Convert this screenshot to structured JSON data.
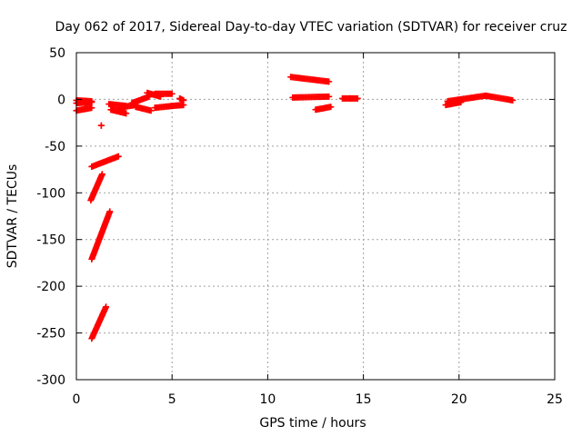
{
  "chart_data": {
    "type": "scatter",
    "title": "Day 062 of 2017, Sidereal Day-to-day VTEC variation (SDTVAR) for receiver cruz",
    "xlabel": "GPS time / hours",
    "ylabel": "SDTVAR / TECUs",
    "xlim": [
      0,
      25
    ],
    "ylim": [
      -300,
      50
    ],
    "xticks": [
      0,
      5,
      10,
      15,
      20,
      25
    ],
    "yticks": [
      50,
      0,
      -50,
      -100,
      -150,
      -200,
      -250,
      -300
    ],
    "grid": true,
    "marker": "plus",
    "color": "#ff0000",
    "segments": [
      {
        "x": [
          0.0,
          0.8
        ],
        "y": [
          -1,
          -2
        ]
      },
      {
        "x": [
          0.0,
          0.8
        ],
        "y": [
          -4,
          -3
        ]
      },
      {
        "x": [
          0.0,
          0.8
        ],
        "y": [
          -12,
          -9
        ]
      },
      {
        "x": [
          1.3,
          1.3
        ],
        "y": [
          -28,
          -28
        ]
      },
      {
        "x": [
          0.8,
          2.2
        ],
        "y": [
          -72,
          -61
        ]
      },
      {
        "x": [
          0.75,
          1.35
        ],
        "y": [
          -108,
          -80
        ]
      },
      {
        "x": [
          0.8,
          1.75
        ],
        "y": [
          -171,
          -120
        ]
      },
      {
        "x": [
          0.8,
          1.55
        ],
        "y": [
          -256,
          -222
        ]
      },
      {
        "x": [
          1.7,
          2.6
        ],
        "y": [
          -5,
          -7
        ]
      },
      {
        "x": [
          1.8,
          2.6
        ],
        "y": [
          -11,
          -15
        ]
      },
      {
        "x": [
          2.2,
          3.1
        ],
        "y": [
          -9,
          -6
        ]
      },
      {
        "x": [
          2.9,
          3.8
        ],
        "y": [
          -4,
          3
        ]
      },
      {
        "x": [
          3.1,
          3.9
        ],
        "y": [
          -8,
          -12
        ]
      },
      {
        "x": [
          3.7,
          4.4
        ],
        "y": [
          7,
          3
        ]
      },
      {
        "x": [
          4.1,
          5.0
        ],
        "y": [
          6,
          6
        ]
      },
      {
        "x": [
          4.1,
          5.0
        ],
        "y": [
          -9,
          -7
        ]
      },
      {
        "x": [
          5.0,
          5.6
        ],
        "y": [
          -7,
          -6
        ]
      },
      {
        "x": [
          5.4,
          5.6
        ],
        "y": [
          1,
          -1
        ]
      },
      {
        "x": [
          11.2,
          13.2
        ],
        "y": [
          24,
          19
        ]
      },
      {
        "x": [
          11.3,
          13.2
        ],
        "y": [
          2,
          3
        ]
      },
      {
        "x": [
          12.5,
          13.3
        ],
        "y": [
          -11,
          -8
        ]
      },
      {
        "x": [
          13.9,
          14.3
        ],
        "y": [
          1,
          1
        ]
      },
      {
        "x": [
          14.3,
          14.7
        ],
        "y": [
          1,
          1
        ]
      },
      {
        "x": [
          19.3,
          20.1
        ],
        "y": [
          -6,
          -3
        ]
      },
      {
        "x": [
          19.4,
          21.4
        ],
        "y": [
          -2,
          4
        ]
      },
      {
        "x": [
          21.4,
          22.8
        ],
        "y": [
          4,
          -1
        ]
      }
    ]
  }
}
